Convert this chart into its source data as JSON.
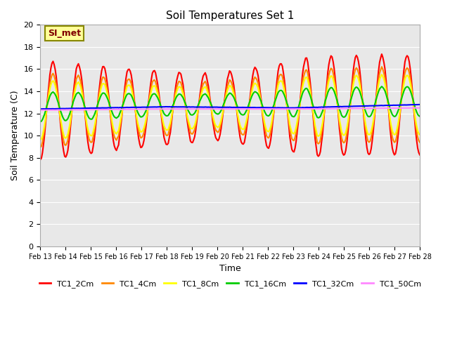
{
  "title": "Soil Temperatures Set 1",
  "xlabel": "Time",
  "ylabel": "Soil Temperature (C)",
  "ylim": [
    0,
    20
  ],
  "yticks": [
    0,
    2,
    4,
    6,
    8,
    10,
    12,
    14,
    16,
    18,
    20
  ],
  "x_labels": [
    "Feb 13",
    "Feb 14",
    "Feb 15",
    "Feb 16",
    "Feb 17",
    "Feb 18",
    "Feb 19",
    "Feb 20",
    "Feb 21",
    "Feb 22",
    "Feb 23",
    "Feb 24",
    "Feb 25",
    "Feb 26",
    "Feb 27",
    "Feb 28"
  ],
  "series_labels": [
    "TC1_2Cm",
    "TC1_4Cm",
    "TC1_8Cm",
    "TC1_16Cm",
    "TC1_32Cm",
    "TC1_50Cm"
  ],
  "series_colors": [
    "#ff0000",
    "#ff8800",
    "#ffff00",
    "#00cc00",
    "#0000ff",
    "#ff88ff"
  ],
  "series_linewidths": [
    1.2,
    1.2,
    1.2,
    1.2,
    1.2,
    1.2
  ],
  "bg_color": "#e8e8e8",
  "plot_bg_color": "#e8e8e8",
  "annotation_text": "SI_met",
  "annotation_bg": "#ffff99",
  "annotation_border": "#888800"
}
